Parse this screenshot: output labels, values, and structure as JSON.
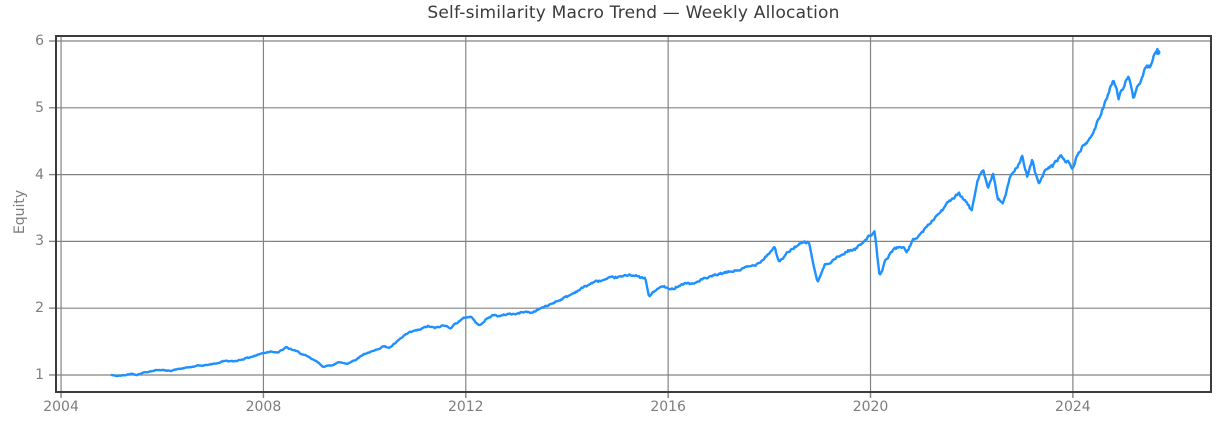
{
  "colors": {
    "background": "#ffffff",
    "grid": "#848484",
    "spine": "#3c3c3c",
    "tick_label": "#7d7d7d",
    "title": "#3a3a3a",
    "line": "#1E90FF"
  },
  "chart_data": {
    "type": "line",
    "title": "Self-similarity Macro Trend — Weekly Allocation",
    "xlabel": "",
    "ylabel": "Equity",
    "grid": true,
    "legend": false,
    "xlim": [
      2003.9,
      2026.73
    ],
    "ylim": [
      0.745,
      6.075
    ],
    "x_ticks": [
      2004,
      2008,
      2012,
      2016,
      2020,
      2024
    ],
    "y_ticks": [
      1,
      2,
      3,
      4,
      5,
      6
    ],
    "sampling": "weekly",
    "noise": 0.013,
    "seed": 42,
    "line_width": 2.4,
    "series": [
      {
        "points": [
          [
            2005.0,
            1.0
          ],
          [
            2005.1,
            0.985
          ],
          [
            2005.25,
            0.995
          ],
          [
            2005.4,
            1.02
          ],
          [
            2005.5,
            1.005
          ],
          [
            2005.65,
            1.04
          ],
          [
            2005.8,
            1.06
          ],
          [
            2005.95,
            1.08
          ],
          [
            2006.1,
            1.06
          ],
          [
            2006.3,
            1.085
          ],
          [
            2006.5,
            1.11
          ],
          [
            2006.7,
            1.135
          ],
          [
            2006.9,
            1.15
          ],
          [
            2007.1,
            1.18
          ],
          [
            2007.25,
            1.215
          ],
          [
            2007.4,
            1.2
          ],
          [
            2007.6,
            1.24
          ],
          [
            2007.8,
            1.28
          ],
          [
            2008.0,
            1.33
          ],
          [
            2008.15,
            1.355
          ],
          [
            2008.3,
            1.34
          ],
          [
            2008.45,
            1.41
          ],
          [
            2008.6,
            1.37
          ],
          [
            2008.75,
            1.32
          ],
          [
            2008.9,
            1.26
          ],
          [
            2009.05,
            1.2
          ],
          [
            2009.2,
            1.12
          ],
          [
            2009.35,
            1.15
          ],
          [
            2009.5,
            1.19
          ],
          [
            2009.65,
            1.17
          ],
          [
            2009.8,
            1.22
          ],
          [
            2010.0,
            1.32
          ],
          [
            2010.2,
            1.36
          ],
          [
            2010.35,
            1.43
          ],
          [
            2010.5,
            1.41
          ],
          [
            2010.65,
            1.5
          ],
          [
            2010.8,
            1.6
          ],
          [
            2010.95,
            1.65
          ],
          [
            2011.1,
            1.68
          ],
          [
            2011.25,
            1.73
          ],
          [
            2011.4,
            1.7
          ],
          [
            2011.55,
            1.74
          ],
          [
            2011.7,
            1.71
          ],
          [
            2011.85,
            1.8
          ],
          [
            2012.0,
            1.86
          ],
          [
            2012.1,
            1.88
          ],
          [
            2012.25,
            1.74
          ],
          [
            2012.4,
            1.83
          ],
          [
            2012.55,
            1.9
          ],
          [
            2012.7,
            1.88
          ],
          [
            2012.85,
            1.92
          ],
          [
            2013.0,
            1.91
          ],
          [
            2013.15,
            1.95
          ],
          [
            2013.3,
            1.93
          ],
          [
            2013.45,
            1.99
          ],
          [
            2013.6,
            2.03
          ],
          [
            2013.75,
            2.09
          ],
          [
            2013.9,
            2.14
          ],
          [
            2014.05,
            2.19
          ],
          [
            2014.2,
            2.26
          ],
          [
            2014.35,
            2.32
          ],
          [
            2014.5,
            2.38
          ],
          [
            2014.65,
            2.41
          ],
          [
            2014.8,
            2.43
          ],
          [
            2014.95,
            2.46
          ],
          [
            2015.1,
            2.47
          ],
          [
            2015.25,
            2.51
          ],
          [
            2015.4,
            2.47
          ],
          [
            2015.55,
            2.44
          ],
          [
            2015.62,
            2.17
          ],
          [
            2015.75,
            2.27
          ],
          [
            2015.9,
            2.33
          ],
          [
            2016.05,
            2.27
          ],
          [
            2016.2,
            2.34
          ],
          [
            2016.35,
            2.38
          ],
          [
            2016.5,
            2.36
          ],
          [
            2016.65,
            2.43
          ],
          [
            2016.8,
            2.45
          ],
          [
            2016.95,
            2.5
          ],
          [
            2017.1,
            2.52
          ],
          [
            2017.25,
            2.55
          ],
          [
            2017.4,
            2.57
          ],
          [
            2017.55,
            2.61
          ],
          [
            2017.7,
            2.64
          ],
          [
            2017.85,
            2.72
          ],
          [
            2018.0,
            2.83
          ],
          [
            2018.1,
            2.92
          ],
          [
            2018.2,
            2.68
          ],
          [
            2018.35,
            2.82
          ],
          [
            2018.5,
            2.92
          ],
          [
            2018.65,
            2.97
          ],
          [
            2018.78,
            2.99
          ],
          [
            2018.95,
            2.38
          ],
          [
            2019.1,
            2.65
          ],
          [
            2019.25,
            2.72
          ],
          [
            2019.4,
            2.78
          ],
          [
            2019.55,
            2.86
          ],
          [
            2019.7,
            2.88
          ],
          [
            2019.85,
            3.0
          ],
          [
            2020.0,
            3.1
          ],
          [
            2020.08,
            3.13
          ],
          [
            2020.18,
            2.47
          ],
          [
            2020.3,
            2.72
          ],
          [
            2020.45,
            2.88
          ],
          [
            2020.6,
            2.93
          ],
          [
            2020.72,
            2.85
          ],
          [
            2020.85,
            3.02
          ],
          [
            2021.0,
            3.12
          ],
          [
            2021.15,
            3.25
          ],
          [
            2021.3,
            3.38
          ],
          [
            2021.45,
            3.5
          ],
          [
            2021.6,
            3.63
          ],
          [
            2021.75,
            3.7
          ],
          [
            2021.9,
            3.58
          ],
          [
            2022.0,
            3.45
          ],
          [
            2022.12,
            3.95
          ],
          [
            2022.22,
            4.1
          ],
          [
            2022.32,
            3.8
          ],
          [
            2022.42,
            4.0
          ],
          [
            2022.52,
            3.62
          ],
          [
            2022.62,
            3.58
          ],
          [
            2022.75,
            3.92
          ],
          [
            2022.9,
            4.12
          ],
          [
            2023.0,
            4.3
          ],
          [
            2023.1,
            3.95
          ],
          [
            2023.2,
            4.22
          ],
          [
            2023.32,
            3.85
          ],
          [
            2023.45,
            4.05
          ],
          [
            2023.6,
            4.12
          ],
          [
            2023.75,
            4.28
          ],
          [
            2023.9,
            4.18
          ],
          [
            2024.0,
            4.1
          ],
          [
            2024.12,
            4.35
          ],
          [
            2024.25,
            4.45
          ],
          [
            2024.4,
            4.62
          ],
          [
            2024.52,
            4.85
          ],
          [
            2024.62,
            5.05
          ],
          [
            2024.72,
            5.28
          ],
          [
            2024.8,
            5.42
          ],
          [
            2024.9,
            5.15
          ],
          [
            2025.0,
            5.32
          ],
          [
            2025.1,
            5.5
          ],
          [
            2025.2,
            5.1
          ],
          [
            2025.3,
            5.35
          ],
          [
            2025.42,
            5.55
          ],
          [
            2025.52,
            5.62
          ],
          [
            2025.62,
            5.78
          ],
          [
            2025.68,
            5.83
          ]
        ]
      }
    ]
  }
}
